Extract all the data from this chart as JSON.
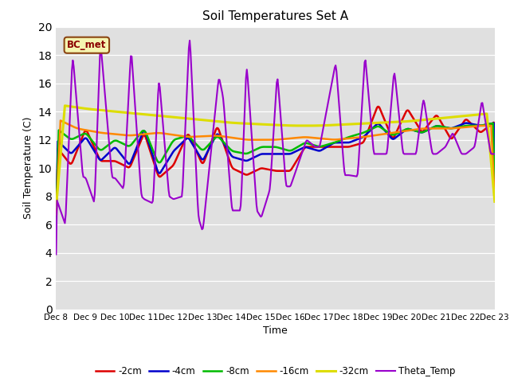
{
  "title": "Soil Temperatures Set A",
  "xlabel": "Time",
  "ylabel": "Soil Temperature (C)",
  "ylim": [
    0,
    20
  ],
  "yticks": [
    0,
    2,
    4,
    6,
    8,
    10,
    12,
    14,
    16,
    18,
    20
  ],
  "annotation_text": "BC_met",
  "annotation_color": "#8B0000",
  "annotation_bg": "#f5f5b0",
  "annotation_border": "#8B4513",
  "bg_color": "#e0e0e0",
  "legend_labels": [
    "-2cm",
    "-4cm",
    "-8cm",
    "-16cm",
    "-32cm",
    "Theta_Temp"
  ],
  "line_colors": [
    "#dd0000",
    "#0000cc",
    "#00bb00",
    "#ff8800",
    "#dddd00",
    "#9900cc"
  ],
  "line_widths": [
    1.8,
    1.8,
    1.8,
    1.8,
    2.2,
    1.5
  ],
  "x_tick_labels": [
    "Dec 8",
    "Dec 9",
    "Dec 10",
    "Dec 11",
    "Dec 12",
    "Dec 13",
    "Dec 14",
    "Dec 15",
    "Dec 16",
    "Dec 17",
    "Dec 18",
    "Dec 19",
    "Dec 20",
    "Dec 21",
    "Dec 22",
    "Dec 23"
  ],
  "theta_key_x": [
    0,
    0.3,
    0.55,
    0.9,
    1.0,
    1.3,
    1.5,
    1.9,
    2.0,
    2.3,
    2.55,
    2.9,
    3.0,
    3.3,
    3.5,
    3.85,
    4.0,
    4.3,
    4.55,
    4.85,
    5.0,
    5.55,
    5.7,
    6.0,
    6.3,
    6.5,
    6.85,
    7.0,
    7.3,
    7.55,
    7.85,
    8.0,
    8.55,
    8.85,
    9.0,
    9.55,
    9.85,
    10.0,
    10.3,
    10.55,
    10.85,
    11.0,
    11.3,
    11.55,
    11.85,
    12.0,
    12.3,
    12.55,
    12.85,
    13.0,
    13.3,
    13.55,
    13.85,
    14.0,
    14.3,
    14.55,
    14.85,
    15.0
  ],
  "theta_key_y": [
    7.8,
    6.0,
    18.1,
    9.4,
    9.3,
    7.5,
    19.0,
    9.3,
    9.3,
    8.5,
    18.5,
    8.0,
    7.8,
    7.5,
    16.5,
    8.0,
    7.8,
    8.0,
    19.7,
    6.5,
    5.5,
    16.5,
    15.0,
    7.0,
    7.0,
    17.5,
    7.0,
    6.5,
    8.5,
    16.7,
    8.7,
    8.7,
    12.0,
    11.5,
    11.5,
    17.5,
    9.5,
    9.5,
    9.4,
    18.0,
    11.0,
    11.0,
    11.0,
    17.0,
    11.0,
    11.0,
    11.0,
    15.0,
    11.0,
    11.0,
    11.5,
    12.5,
    11.0,
    11.0,
    11.5,
    14.8,
    11.0,
    11.0
  ],
  "cm2_key_x": [
    0,
    0.5,
    1.0,
    1.5,
    2.0,
    2.5,
    3.0,
    3.5,
    4.0,
    4.5,
    5.0,
    5.5,
    6.0,
    6.5,
    7.0,
    7.5,
    8.0,
    8.5,
    9.0,
    9.5,
    10.0,
    10.5,
    11.0,
    11.5,
    12.0,
    12.5,
    13.0,
    13.5,
    14.0,
    14.5,
    15.0
  ],
  "cm2_key_y": [
    11.5,
    10.2,
    12.8,
    10.5,
    10.5,
    10.0,
    12.5,
    9.3,
    10.2,
    12.5,
    10.2,
    13.0,
    10.0,
    9.5,
    10.0,
    9.8,
    9.8,
    11.5,
    11.5,
    11.5,
    11.5,
    11.8,
    14.5,
    12.0,
    14.2,
    12.5,
    13.8,
    12.0,
    13.5,
    12.5,
    13.3
  ],
  "cm4_key_x": [
    0,
    0.5,
    1.0,
    1.5,
    2.0,
    2.5,
    3.0,
    3.5,
    4.0,
    4.5,
    5.0,
    5.5,
    6.0,
    6.5,
    7.0,
    7.5,
    8.0,
    8.5,
    9.0,
    9.5,
    10.0,
    10.5,
    11.0,
    11.5,
    12.0,
    12.5,
    13.0,
    13.5,
    14.0,
    14.5,
    15.0
  ],
  "cm4_key_y": [
    12.0,
    11.0,
    12.2,
    10.5,
    11.5,
    10.2,
    12.8,
    9.5,
    11.2,
    12.2,
    10.5,
    12.5,
    10.8,
    10.5,
    11.0,
    11.0,
    11.0,
    11.5,
    11.2,
    11.8,
    11.8,
    12.2,
    13.2,
    12.0,
    12.8,
    12.5,
    13.0,
    12.8,
    13.2,
    13.0,
    13.2
  ],
  "cm8_key_x": [
    0,
    0.5,
    1.0,
    1.5,
    2.0,
    2.5,
    3.0,
    3.5,
    4.0,
    4.5,
    5.0,
    5.5,
    6.0,
    6.5,
    7.0,
    7.5,
    8.0,
    8.5,
    9.0,
    9.5,
    10.0,
    10.5,
    11.0,
    11.5,
    12.0,
    12.5,
    13.0,
    13.5,
    14.0,
    14.5,
    15.0
  ],
  "cm8_key_y": [
    12.8,
    12.0,
    12.5,
    11.2,
    12.0,
    11.5,
    12.8,
    10.2,
    12.0,
    12.3,
    11.2,
    12.3,
    11.2,
    11.0,
    11.5,
    11.5,
    11.2,
    11.8,
    11.5,
    11.8,
    12.2,
    12.5,
    13.0,
    12.3,
    12.8,
    12.5,
    13.0,
    12.8,
    13.0,
    13.0,
    13.2
  ],
  "cm16_key_x": [
    0,
    0.7,
    1.5,
    2.5,
    3.5,
    4.5,
    5.5,
    6.5,
    7.5,
    8.5,
    9.5,
    10.5,
    11.5,
    12.5,
    13.5,
    14.5,
    15.0
  ],
  "cm16_key_y": [
    13.5,
    12.8,
    12.5,
    12.3,
    12.5,
    12.2,
    12.3,
    12.0,
    12.0,
    12.2,
    12.0,
    12.2,
    12.5,
    12.8,
    12.8,
    13.0,
    13.0
  ],
  "cm32_key_x": [
    0,
    1,
    2,
    3,
    4,
    5,
    6,
    7,
    8,
    9,
    10,
    11,
    12,
    13,
    14,
    15
  ],
  "cm32_key_y": [
    14.5,
    14.2,
    14.0,
    13.8,
    13.6,
    13.4,
    13.2,
    13.1,
    13.0,
    13.0,
    13.1,
    13.2,
    13.3,
    13.5,
    13.7,
    13.9
  ],
  "n_points": 500
}
